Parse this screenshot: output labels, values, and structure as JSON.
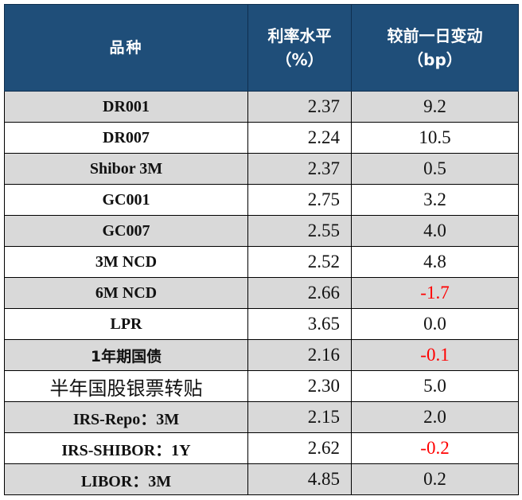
{
  "header": {
    "col1": "品种",
    "col2_line1": "利率水平",
    "col2_line2": "（%）",
    "col3_line1": "较前一日变动",
    "col3_line2": "（bp）"
  },
  "rows": [
    {
      "name": "DR001",
      "rate": "2.37",
      "change": "9.2"
    },
    {
      "name": "DR007",
      "rate": "2.24",
      "change": "10.5"
    },
    {
      "name": "Shibor 3M",
      "rate": "2.37",
      "change": "0.5"
    },
    {
      "name": "GC001",
      "rate": "2.75",
      "change": "3.2"
    },
    {
      "name": "GC007",
      "rate": "2.55",
      "change": "4.0"
    },
    {
      "name": "3M NCD",
      "rate": "2.52",
      "change": "4.8"
    },
    {
      "name": "6M NCD",
      "rate": "2.66",
      "change": "-1.7"
    },
    {
      "name": "LPR",
      "rate": "3.65",
      "change": "0.0"
    },
    {
      "name": "1年期国债",
      "rate": "2.16",
      "change": "-0.1"
    },
    {
      "name": "半年国股银票转贴",
      "rate": "2.30",
      "change": "5.0"
    },
    {
      "name": "IRS-Repo：3M",
      "rate": "2.15",
      "change": "2.0"
    },
    {
      "name": "IRS-SHIBOR：1Y",
      "rate": "2.62",
      "change": "-0.2"
    },
    {
      "name": "LIBOR：3M",
      "rate": "4.85",
      "change": "0.2"
    }
  ],
  "colors": {
    "header_bg": "#1f4e79",
    "header_text": "#ffffff",
    "shaded_row": "#d9d9d9",
    "negative": "#ff0000"
  }
}
